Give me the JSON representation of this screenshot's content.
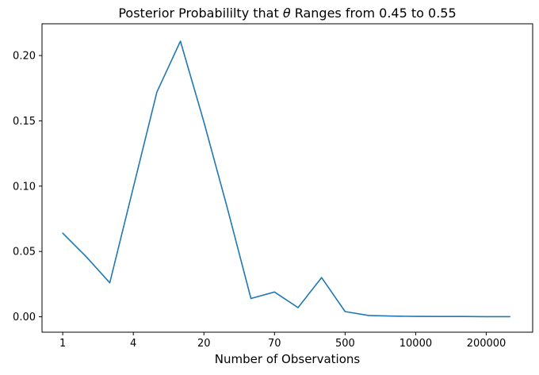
{
  "colors": {
    "line": "#1f77b4",
    "axes": "#000000",
    "text": "#000000",
    "background": "#ffffff"
  },
  "chart_data": {
    "type": "line",
    "title": "Posterior Probabililty that θ Ranges from 0.45 to 0.55",
    "title_parts": {
      "prefix": "Posterior Probabililty that ",
      "math": "θ",
      "suffix": " Ranges from 0.45 to 0.55"
    },
    "xlabel": "Number of Observations",
    "ylabel": "",
    "grid": false,
    "legend_position": "none",
    "x_axis": {
      "scale": "categorical-index",
      "lim": [
        -0.88,
        19.97
      ],
      "tick_positions": [
        0,
        3,
        6,
        9,
        12,
        15,
        18
      ],
      "tick_labels": [
        "1",
        "4",
        "20",
        "70",
        "500",
        "10000",
        "200000"
      ]
    },
    "y_axis": {
      "lim": [
        -0.0118,
        0.2243
      ],
      "tick_values": [
        0.0,
        0.05,
        0.1,
        0.15,
        0.2
      ],
      "tick_labels": [
        "0.00",
        "0.05",
        "0.10",
        "0.15",
        "0.20"
      ]
    },
    "series": [
      {
        "name": "posterior probability",
        "color": "#1f77b4",
        "x": [
          0,
          1,
          2,
          3,
          4,
          5,
          6,
          7,
          8,
          9,
          10,
          11,
          12,
          13,
          14,
          15,
          16,
          17,
          18,
          19
        ],
        "values": [
          0.064,
          0.046,
          0.026,
          0.099,
          0.172,
          0.211,
          0.149,
          0.083,
          0.014,
          0.019,
          0.007,
          0.03,
          0.004,
          0.001,
          0.0005,
          0.0003,
          0.0002,
          0.0002,
          0.0001,
          0.0001
        ]
      }
    ]
  }
}
